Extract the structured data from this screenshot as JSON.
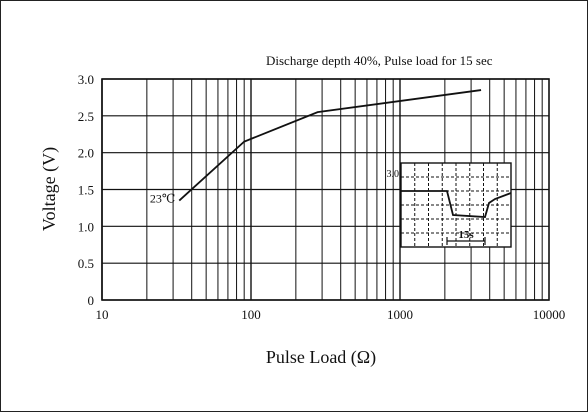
{
  "chart_data": {
    "type": "line",
    "title": "Discharge depth 40%, Pulse load for 15 sec",
    "xlabel": "Pulse Load (Ω)",
    "ylabel": "Voltage (V)",
    "xscale": "log",
    "xlim": [
      10,
      10000
    ],
    "ylim": [
      0,
      3.0
    ],
    "x_ticks": [
      10,
      100,
      1000,
      10000
    ],
    "x_tick_labels": [
      "10",
      "100",
      "1000",
      "10000"
    ],
    "y_ticks": [
      0,
      0.5,
      1.0,
      1.5,
      2.0,
      2.5,
      3.0
    ],
    "y_tick_labels": [
      "0",
      "0.5",
      "1.0",
      "1.5",
      "2.0",
      "2.5",
      "3.0"
    ],
    "grid": true,
    "series": [
      {
        "name": "23℃",
        "points": [
          {
            "x": 33,
            "y": 1.35
          },
          {
            "x": 90,
            "y": 2.15
          },
          {
            "x": 280,
            "y": 2.55
          },
          {
            "x": 3500,
            "y": 2.85
          }
        ]
      }
    ],
    "inset": {
      "value_label": "3.0",
      "duration_label": "15s"
    }
  }
}
